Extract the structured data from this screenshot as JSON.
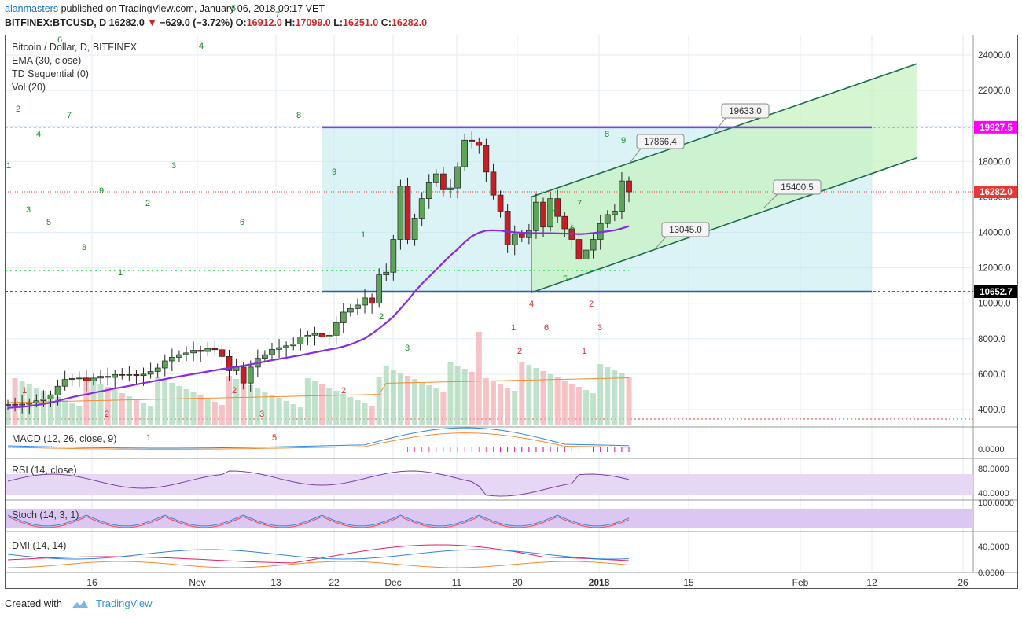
{
  "header": {
    "user": "alanmasters",
    "published": "published on TradingView.com, January 06, 2018 09:17 VET",
    "symbol": "BITFINEX:BTCUSD, D",
    "last": "16282.0",
    "change": "−629.0 (−3.72%)",
    "o_label": "O:",
    "o": "16912.0",
    "h_label": "H:",
    "h": "17099.0",
    "l_label": "L:",
    "l": "16251.0",
    "c_label": "C:",
    "c": "16282.0"
  },
  "legend": {
    "title": "Bitcoin / Dollar, D, BITFINEX",
    "ema": "EMA (30, close)",
    "td": "TD Sequential (0)",
    "vol": "Vol (20)",
    "macd": "MACD (12, 26, close, 9)",
    "rsi": "RSI (14, close)",
    "stoch": "Stoch (14, 3, 1)",
    "dmi": "DMI (14, 14)"
  },
  "footer": {
    "created": "Created with",
    "brand": "TradingView"
  },
  "colors": {
    "up": "#2e7d32",
    "down": "#c62828",
    "ema": "#8a2be2",
    "grid": "#e3ebf5",
    "channel": "#1e6b50",
    "box": "#9fe0e6",
    "pink": "#ff00ff"
  },
  "chart_data": {
    "type": "candlestick",
    "price_axis": {
      "ticks": [
        "24000.0",
        "22000.0",
        "20000.0",
        "18000.0",
        "16000.0",
        "14000.0",
        "12000.0",
        "10000.0",
        "8000.0",
        "6000.0",
        "4000.0"
      ],
      "range": [
        3300,
        25000
      ]
    },
    "time_axis": {
      "labels": [
        "16",
        "Nov",
        "13",
        "22",
        "Dec",
        "11",
        "20",
        "2018",
        "15",
        "Feb",
        "12",
        "26"
      ]
    },
    "price_labels": [
      {
        "text": "19927.5",
        "value": 19927.5,
        "color": "#ff00ff"
      },
      {
        "text": "16282.0",
        "value": 16282.0,
        "color": "#e53935"
      },
      {
        "text": "10652.7",
        "value": 10652.7,
        "color": "#000000"
      }
    ],
    "annotations": [
      "19633.0",
      "17866.4",
      "15400.5",
      "13045.0"
    ],
    "closes": [
      4300,
      4260,
      4310,
      4380,
      4500,
      4600,
      4820,
      5320,
      5700,
      5760,
      5780,
      5620,
      5780,
      5880,
      5820,
      5980,
      5950,
      5980,
      5920,
      6000,
      6150,
      6350,
      6750,
      6950,
      7100,
      7200,
      7350,
      7280,
      7450,
      7380,
      7000,
      6200,
      6400,
      5500,
      6400,
      6900,
      7100,
      7400,
      7500,
      7600,
      7700,
      8100,
      8200,
      8300,
      8100,
      8200,
      8900,
      9500,
      9700,
      9900,
      10300,
      10000,
      11600,
      11750,
      13600,
      16600,
      13600,
      14800,
      15900,
      16800,
      17300,
      16400,
      16500,
      17700,
      19200,
      19100,
      18900,
      17400,
      16100,
      15200,
      13300,
      13900,
      13700,
      14100,
      15700,
      14300,
      15900,
      14900,
      14200,
      13600,
      12500,
      13000,
      13600,
      14500,
      15000,
      15200,
      16900,
      16282
    ],
    "ema30": [
      4100,
      4130,
      4160,
      4200,
      4260,
      4320,
      4400,
      4490,
      4600,
      4700,
      4790,
      4860,
      4950,
      5030,
      5110,
      5190,
      5260,
      5340,
      5420,
      5500,
      5570,
      5650,
      5720,
      5800,
      5870,
      5940,
      6010,
      6080,
      6150,
      6220,
      6290,
      6350,
      6420,
      6480,
      6550,
      6630,
      6710,
      6790,
      6860,
      6930,
      7000,
      7070,
      7150,
      7230,
      7310,
      7390,
      7460,
      7560,
      7680,
      7840,
      8020,
      8280,
      8580,
      8900,
      9250,
      9700,
      10150,
      10650,
      11100,
      11500,
      11900,
      12300,
      12700,
      13050,
      13450,
      13780,
      13980,
      14100,
      14120,
      14100,
      14050,
      14000,
      13980,
      13960,
      13950,
      13950,
      13950,
      13940,
      13930,
      13920,
      13900,
      13920,
      13960,
      14010,
      14060,
      14120,
      14220,
      14350
    ],
    "volume": [
      1,
      1,
      1,
      1,
      1,
      1,
      1,
      1,
      1,
      1,
      1,
      1,
      1,
      1,
      1,
      1,
      1,
      1,
      1,
      1,
      1,
      1,
      1,
      1,
      1,
      1,
      1,
      1,
      1,
      1,
      1,
      1,
      1,
      1,
      1,
      1,
      1,
      1,
      1,
      1,
      1,
      1,
      1,
      1,
      1,
      1,
      1,
      1,
      1,
      1,
      1,
      1,
      1,
      1,
      1,
      1,
      1,
      1,
      1,
      1,
      1,
      1,
      1,
      1,
      1,
      1,
      1,
      1,
      1,
      1,
      1,
      1,
      1,
      1,
      1,
      1,
      1,
      1,
      1,
      1,
      1,
      1,
      1,
      1,
      1,
      1,
      1,
      1
    ]
  }
}
